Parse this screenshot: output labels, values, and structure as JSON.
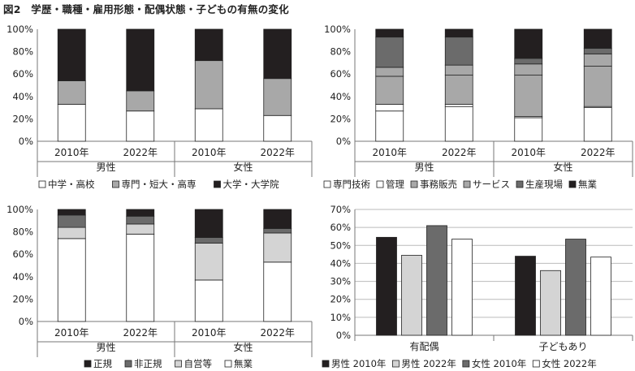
{
  "figure_title": "図2　学歴・職種・雇用形態・配偶状態・子どもの有無の変化",
  "colors": {
    "white": "#ffffff",
    "light": "#d4d4d4",
    "mid": "#a8a8a8",
    "dark": "#6b6b6b",
    "black": "#231f20",
    "axis": "#777777",
    "grid": "#bbbbbb"
  },
  "chart_data": [
    {
      "id": "education",
      "type": "bar",
      "stacked": true,
      "groups": [
        {
          "label": "男性",
          "categories": [
            "2010年",
            "2022年"
          ]
        },
        {
          "label": "女性",
          "categories": [
            "2010年",
            "2022年"
          ]
        }
      ],
      "series": [
        {
          "name": "中学・高校",
          "color_key": "white",
          "values": [
            33,
            27,
            29,
            23
          ]
        },
        {
          "name": "専門・短大・高専",
          "color_key": "mid",
          "values": [
            21,
            18,
            43,
            33
          ]
        },
        {
          "name": "大学・大学院",
          "color_key": "black",
          "values": [
            46,
            55,
            28,
            44
          ]
        }
      ],
      "y_ticks": [
        "0%",
        "20%",
        "40%",
        "60%",
        "80%",
        "100%"
      ],
      "ylim": [
        0,
        100
      ],
      "grid": false,
      "legend_position": "bottom"
    },
    {
      "id": "occupation",
      "type": "bar",
      "stacked": true,
      "groups": [
        {
          "label": "男性",
          "categories": [
            "2010年",
            "2022年"
          ]
        },
        {
          "label": "女性",
          "categories": [
            "2010年",
            "2022年"
          ]
        }
      ],
      "series": [
        {
          "name": "専門技術",
          "color_key": "white",
          "values": [
            27,
            31,
            21,
            30
          ]
        },
        {
          "name": "管理",
          "color_key": "white",
          "values": [
            6,
            2,
            1,
            1
          ]
        },
        {
          "name": "事務販売",
          "color_key": "mid",
          "values": [
            25,
            26,
            37,
            36
          ]
        },
        {
          "name": "サービス",
          "color_key": "mid",
          "values": [
            8,
            9,
            10,
            11
          ]
        },
        {
          "name": "生産現場",
          "color_key": "dark",
          "values": [
            27,
            25,
            5,
            5
          ]
        },
        {
          "name": "無業",
          "color_key": "black",
          "values": [
            7,
            7,
            26,
            17
          ]
        }
      ],
      "y_ticks": [
        "0%",
        "20%",
        "40%",
        "60%",
        "80%",
        "100%"
      ],
      "ylim": [
        0,
        100
      ],
      "grid": false,
      "legend_position": "bottom"
    },
    {
      "id": "employment",
      "type": "bar",
      "stacked": true,
      "groups": [
        {
          "label": "男性",
          "categories": [
            "2010年",
            "2022年"
          ]
        },
        {
          "label": "女性",
          "categories": [
            "2010年",
            "2022年"
          ]
        }
      ],
      "series": [
        {
          "name": "無業",
          "color_key": "white",
          "values": [
            74,
            78,
            37,
            53
          ]
        },
        {
          "name": "自営等",
          "color_key": "light",
          "values": [
            10,
            9,
            33,
            26
          ]
        },
        {
          "name": "非正規",
          "color_key": "dark",
          "values": [
            11,
            7,
            5,
            4
          ]
        },
        {
          "name": "正規",
          "color_key": "black",
          "values": [
            5,
            6,
            25,
            17
          ]
        }
      ],
      "legend_order": [
        "正規",
        "非正規",
        "自営等",
        "無業"
      ],
      "y_ticks": [
        "0%",
        "20%",
        "40%",
        "60%",
        "80%",
        "100%"
      ],
      "ylim": [
        0,
        100
      ],
      "grid": false,
      "legend_position": "bottom"
    },
    {
      "id": "family",
      "type": "bar",
      "stacked": false,
      "categories": [
        "有配偶",
        "子どもあり"
      ],
      "series": [
        {
          "name": "男性 2010年",
          "color_key": "black",
          "values": [
            54.5,
            44
          ]
        },
        {
          "name": "男性 2022年",
          "color_key": "light",
          "values": [
            44.5,
            36
          ]
        },
        {
          "name": "女性 2010年",
          "color_key": "dark",
          "values": [
            61,
            53.5
          ]
        },
        {
          "name": "女性 2022年",
          "color_key": "white",
          "values": [
            53.5,
            43.5
          ]
        }
      ],
      "y_ticks": [
        "0%",
        "10%",
        "20%",
        "30%",
        "40%",
        "50%",
        "60%",
        "70%"
      ],
      "ylim": [
        0,
        70
      ],
      "grid": true,
      "legend_position": "bottom"
    }
  ]
}
